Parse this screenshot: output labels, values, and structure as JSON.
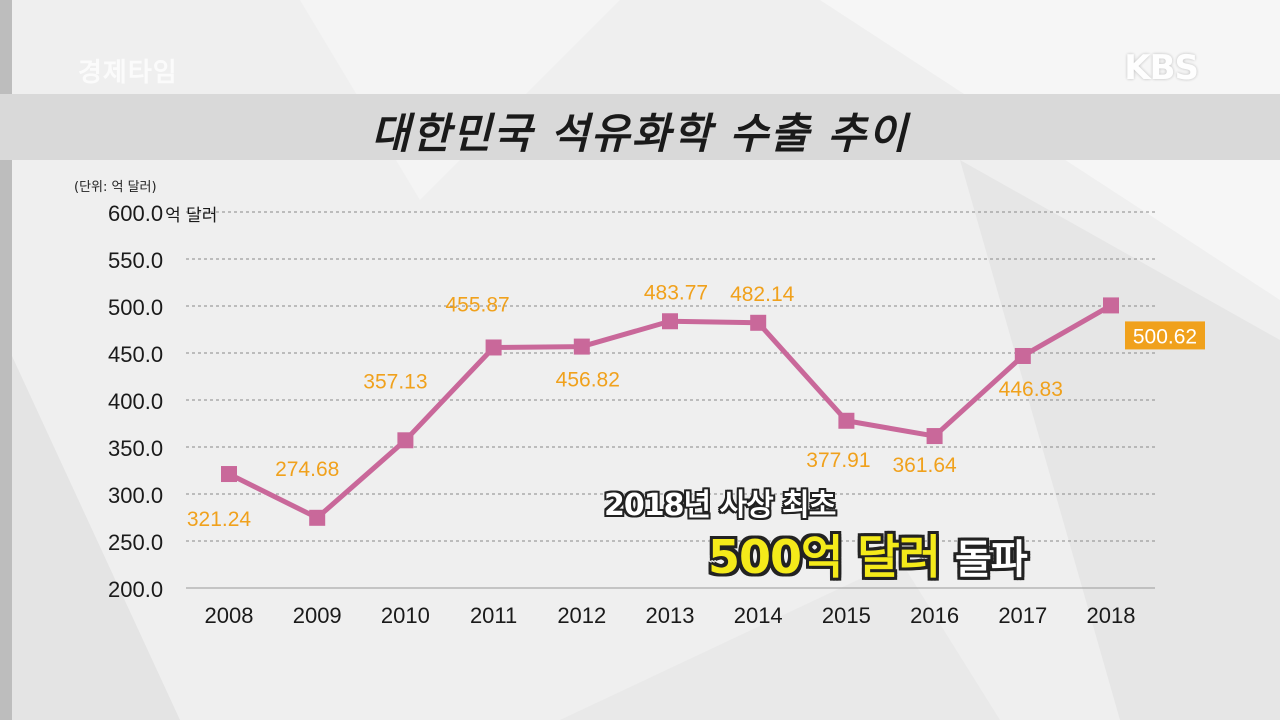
{
  "broadcaster": {
    "logo": "KBS",
    "program_mark": "경제타임"
  },
  "title": "대한민국 석유화학 수출 추이",
  "unit_note": "(단위: 억 달러)",
  "colors": {
    "line": "#c9689a",
    "label": "#f0a11c",
    "highlight_box": "#f0a11c",
    "caption_yellow": "#f4ea1a"
  },
  "caption": {
    "line1": "2018년 사상 최초",
    "highlight": "500억 달러",
    "suffix": "돌파"
  },
  "chart_data": {
    "type": "line",
    "title": "대한민국 석유화학 수출 추이",
    "unit": "(단위: 억 달러)",
    "x": [
      "2008",
      "2009",
      "2010",
      "2011",
      "2012",
      "2013",
      "2014",
      "2015",
      "2016",
      "2017",
      "2018"
    ],
    "values": [
      321.24,
      274.68,
      357.13,
      455.87,
      456.82,
      483.77,
      482.14,
      377.91,
      361.64,
      446.83,
      500.62
    ],
    "value_labels": [
      "321.24",
      "274.68",
      "357.13",
      "455.87",
      "456.82",
      "483.77",
      "482.14",
      "377.91",
      "361.64",
      "446.83",
      "500.62"
    ],
    "y_ticks": [
      200,
      250,
      300,
      350,
      400,
      450,
      500,
      550,
      600
    ],
    "y_tick_labels": [
      "200.0",
      "250.0",
      "300.0",
      "350.0",
      "400.0",
      "450.0",
      "500.0",
      "550.0",
      "600.0억 달러"
    ],
    "ylim": [
      200,
      600
    ],
    "grid": "dashed horizontal",
    "highlighted_point": "2018",
    "marker": "square"
  }
}
